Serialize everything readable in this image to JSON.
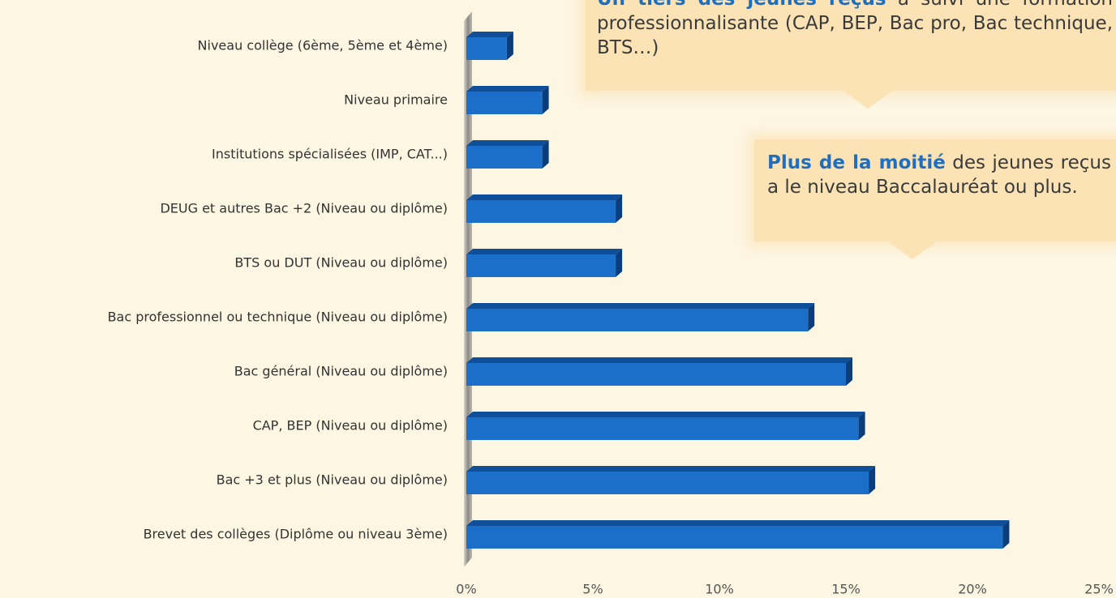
{
  "chart_data": {
    "type": "bar",
    "orientation": "horizontal",
    "categories": [
      "Niveau collège (6ème, 5ème et 4ème)",
      "Niveau primaire",
      "Institutions spécialisées (IMP, CAT...)",
      "DEUG et autres Bac +2 (Niveau ou diplôme)",
      "BTS ou DUT (Niveau ou diplôme)",
      "Bac professionnel ou technique (Niveau ou diplôme)",
      "Bac général (Niveau ou diplôme)",
      "CAP, BEP (Niveau ou diplôme)",
      "Bac +3 et plus (Niveau ou diplôme)",
      "Brevet des collèges (Diplôme ou niveau 3ème)"
    ],
    "values": [
      1.6,
      3.0,
      3.0,
      5.9,
      5.9,
      13.5,
      15.0,
      15.5,
      15.9,
      21.2
    ],
    "color": "#1b6fc8",
    "xlim": [
      0,
      25
    ],
    "xticks": [
      {
        "value": 0,
        "label": "0%"
      },
      {
        "value": 5,
        "label": "5%"
      },
      {
        "value": 10,
        "label": "10%"
      },
      {
        "value": 15,
        "label": "15%"
      },
      {
        "value": 20,
        "label": "20%"
      },
      {
        "value": 25,
        "label": "25%"
      }
    ],
    "grid": false,
    "annotations": [
      {
        "bold": "Un tiers des jeunes reçus",
        "text": " a suivi une formation professionnalisante (CAP, BEP, Bac pro, Bac technique, BTS…)"
      },
      {
        "bold": "Plus de la moitié",
        "text": " des jeunes reçus a le niveau Baccalauréat ou plus."
      }
    ]
  }
}
